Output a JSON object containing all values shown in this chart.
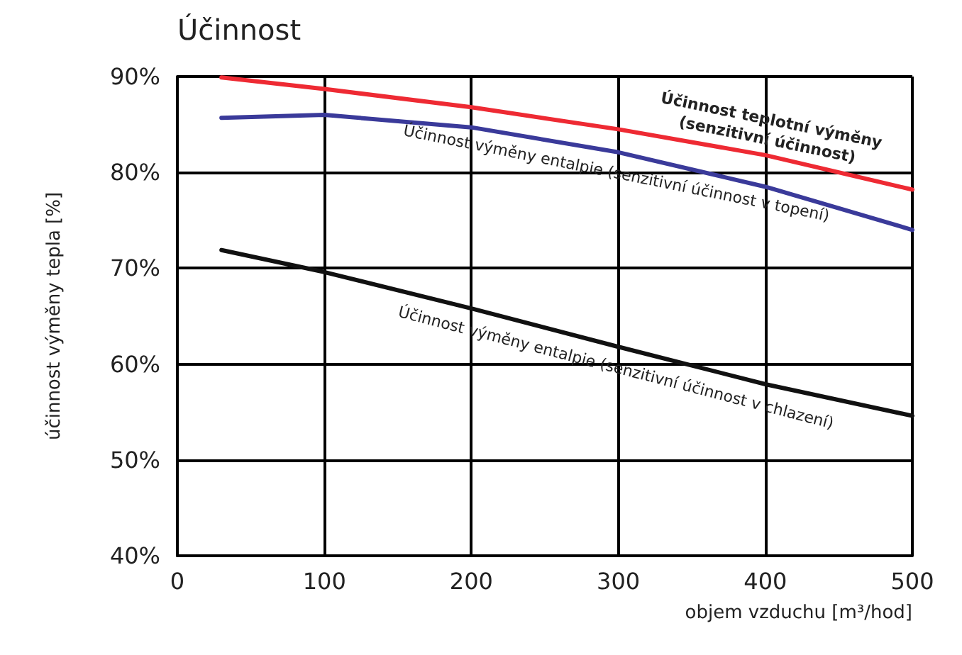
{
  "chart_data": {
    "type": "line",
    "title": "Účinnost",
    "xlabel": "objem vzduchu [m³/hod]",
    "ylabel": "účinnost výměny tepla [%]",
    "x": [
      30,
      100,
      200,
      300,
      400,
      500
    ],
    "series": [
      {
        "name": "Účinnost teplotní výměny\n(senzitivní účinnost)",
        "color": "#ee2a33",
        "values": [
          89.9,
          88.7,
          86.8,
          84.5,
          81.8,
          78.2
        ]
      },
      {
        "name": "Účinnost výměny entalpie (senzitivní účinnost v topení)",
        "color": "#3a3a9a",
        "values": [
          85.7,
          86.0,
          84.7,
          82.1,
          78.5,
          74.0
        ]
      },
      {
        "name": "Účinnost výměny entalpie (senzitivní účinnost v chlazení)",
        "color": "#111111",
        "values": [
          71.9,
          69.6,
          65.8,
          61.8,
          57.9,
          54.6
        ]
      }
    ],
    "xlim": [
      0,
      500
    ],
    "xticks": [
      0,
      100,
      200,
      300,
      400,
      500
    ],
    "ylim": [
      40,
      90
    ],
    "yticks": [
      {
        "value": 40,
        "label": "40%"
      },
      {
        "value": 50,
        "label": "50%"
      },
      {
        "value": 60,
        "label": "60%"
      },
      {
        "value": 70,
        "label": "70%"
      },
      {
        "value": 80,
        "label": "80%"
      },
      {
        "value": 90,
        "label": "90%"
      }
    ],
    "grid": true,
    "legend": false,
    "marker": "none",
    "line_style": "solid"
  }
}
